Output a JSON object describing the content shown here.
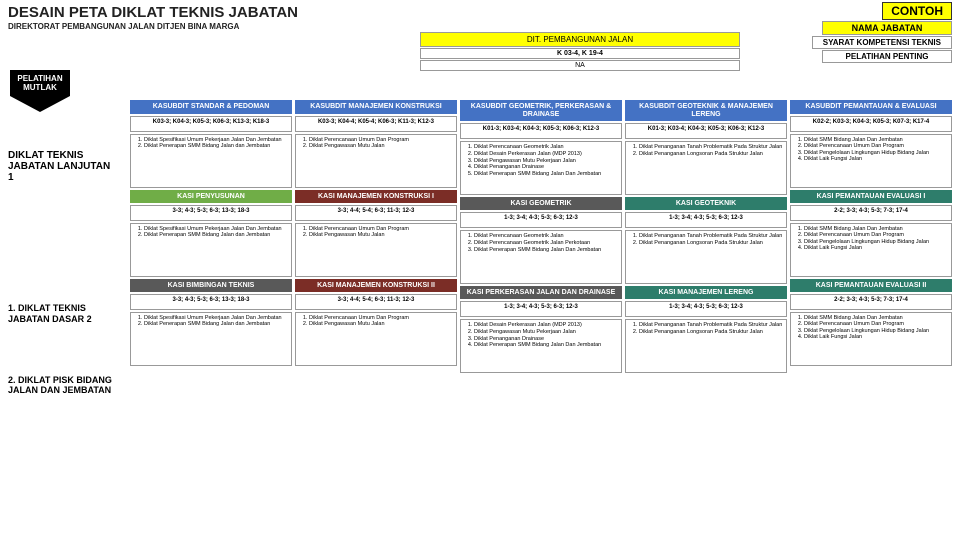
{
  "header": {
    "title": "DESAIN PETA DIKLAT TEKNIS JABATAN",
    "subtitle": "DIREKTORAT PEMBANGUNAN JALAN DITJEN BINA MARGA"
  },
  "topRight": {
    "contoh": "CONTOH",
    "nama": "NAMA JABATAN",
    "syarat": "SYARAT KOMPETENSI TEKNIS",
    "penting": "PELATIHAN PENTING"
  },
  "topMid": {
    "dit": "DIT. PEMBANGUNAN JALAN",
    "kode": "K 03-4, K 19-4",
    "na": "NA"
  },
  "mutlak": "PELATIHAN MUTLAK",
  "left": {
    "title": "DIKLAT TEKNIS JABATAN LANJUTAN 1",
    "i1": "1. DIKLAT TEKNIS JABATAN DASAR 2",
    "i2": "2. DIKLAT PISK BIDANG JALAN DAN JEMBATAN"
  },
  "colors": {
    "blue": "#4472C4",
    "green": "#70AD47",
    "dgray": "#595959",
    "maroon": "#7B2D26",
    "teal": "#2E7D6B",
    "yellow": "#FFFF00"
  },
  "cols": [
    {
      "hdr": "KASUBDIT STANDAR & PEDOMAN",
      "hdrCls": "c-blue",
      "codes": "K03-3; K04-3; K05-3; K06-3; K13-3; K18-3",
      "items": [
        "Diklat Spesifikasi Umum Pekerjaan Jalan Dan Jembatan",
        "Diklat Penerapan SMM Bidang Jalan dan Jembatan"
      ],
      "sub": [
        {
          "t": "KASI PENYUSUNAN",
          "cls": "c-green",
          "c": "3-3; 4-3; 5-3; 6-3; 13-3; 18-3",
          "it": [
            "Diklat Spesifikasi Umum Pekerjaan Jalan Dan Jembatan",
            "Diklat Penerapan SMM Bidang Jalan dan Jembatan"
          ]
        },
        {
          "t": "KASI BIMBINGAN TEKNIS",
          "cls": "c-dgray",
          "c": "3-3; 4-3; 5-3; 6-3; 13-3; 18-3",
          "it": [
            "Diklat Spesifikasi Umum Pekerjaan Jalan Dan Jembatan",
            "Diklat Penerapan SMM Bidang Jalan dan Jembatan"
          ]
        }
      ]
    },
    {
      "hdr": "KASUBDIT MANAJEMEN KONSTRUKSI",
      "hdrCls": "c-blue",
      "codes": "K03-3; K04-4; K05-4; K06-3; K11-3; K12-3",
      "items": [
        "Diklat Perencanaan Umum Dan Program",
        "Diklat Pengawasan Mutu Jalan"
      ],
      "sub": [
        {
          "t": "KASI MANAJEMEN KONSTRUKSI I",
          "cls": "c-maroon",
          "c": "3-3; 4-4; 5-4; 6-3; 11-3; 12-3",
          "it": [
            "Diklat Perencanaan Umum Dan Program",
            "Diklat Pengawasan Mutu Jalan"
          ]
        },
        {
          "t": "KASI MANAJEMEN KONSTRUKSI II",
          "cls": "c-maroon",
          "c": "3-3; 4-4; 5-4; 6-3; 11-3; 12-3",
          "it": [
            "Diklat Perencanaan Umum Dan Program",
            "Diklat Pengawasan Mutu Jalan"
          ]
        }
      ]
    },
    {
      "hdr": "KASUBDIT GEOMETRIK, PERKERASAN & DRAINASE",
      "hdrCls": "c-blue",
      "codes": "K01-3; K03-4; K04-3; K05-3; K06-3; K12-3",
      "items": [
        "Diklat Perencanaan Geometrik Jalan",
        "Diklat Desain Perkerasan Jalan (MDP 2013)",
        "Diklat Pengawasan Mutu Pekerjaan Jalan",
        "Diklat Penanganan Drainase",
        "Diklat Penerapan SMM Bidang Jalan Dan Jembatan"
      ],
      "sub": [
        {
          "t": "KASI GEOMETRIK",
          "cls": "c-dgray",
          "c": "1-3; 3-4; 4-3; 5-3; 6-3; 12-3",
          "it": [
            "Diklat Perencanaan Geometrik Jalan",
            "Diklat Perencanaan Geometrik Jalan Perkotaan",
            "Diklat Penerapan SMM Bidang Jalan Dan Jembatan"
          ]
        },
        {
          "t": "KASI PERKERASAN JALAN DAN DRAINASE",
          "cls": "c-dgray",
          "c": "1-3; 3-4; 4-3; 5-3; 6-3; 12-3",
          "it": [
            "Diklat Desain Perkerasan Jalan (MDP 2013)",
            "Diklat Pengawasan Mutu Pekerjaan Jalan",
            "Diklat Penanganan Drainase",
            "Diklat Penerapan SMM Bidang Jalan Dan Jembatan"
          ]
        }
      ]
    },
    {
      "hdr": "KASUBDIT GEOTEKNIK & MANAJEMEN LERENG",
      "hdrCls": "c-blue",
      "codes": "K01-3; K03-4; K04-3; K05-3; K06-3; K12-3",
      "items": [
        "Diklat Penanganan Tanah Problematik Pada Struktur Jalan",
        "Diklat Penanganan Longsoran Pada Struktur Jalan"
      ],
      "sub": [
        {
          "t": "KASI GEOTEKNIK",
          "cls": "c-teal",
          "c": "1-3; 3-4; 4-3; 5-3; 6-3; 12-3",
          "it": [
            "Diklat Penanganan Tanah Problematik Pada Struktur Jalan",
            "Diklat Penanganan Longsoran Pada Struktur Jalan"
          ]
        },
        {
          "t": "KASI MANAJEMEN LERENG",
          "cls": "c-teal",
          "c": "1-3; 3-4; 4-3; 5-3; 6-3; 12-3",
          "it": [
            "Diklat Penanganan Tanah Problematik Pada Struktur Jalan",
            "Diklat Penanganan Longsoran Pada Struktur Jalan"
          ]
        }
      ]
    },
    {
      "hdr": "KASUBDIT PEMANTAUAN & EVALUASI",
      "hdrCls": "c-blue",
      "codes": "K02-2; K03-3; K04-3; K05-3; K07-3; K17-4",
      "items": [
        "Diklat SMM Bidang Jalan Dan Jembatan",
        "Diklat Perencanaan Umum Dan Program",
        "Diklat Pengelolaan Lingkungan Hidup Bidang Jalan",
        "Diklat Laik Fungsi Jalan"
      ],
      "sub": [
        {
          "t": "KASI PEMANTAUAN EVALUASI I",
          "cls": "c-teal",
          "c": "2-2; 3-3; 4-3; 5-3; 7-3; 17-4",
          "it": [
            "Diklat SMM Bidang Jalan Dan Jembatan",
            "Diklat Perencanaan Umum Dan Program",
            "Diklat Pengelolaan Lingkungan Hidup Bidang Jalan",
            "Diklat Laik Fungsi Jalan"
          ]
        },
        {
          "t": "KASI PEMANTAUAN EVALUASI II",
          "cls": "c-teal",
          "c": "2-2; 3-3; 4-3; 5-3; 7-3; 17-4",
          "it": [
            "Diklat SMM Bidang Jalan Dan Jembatan",
            "Diklat Perencanaan Umum Dan Program",
            "Diklat Pengelolaan Lingkungan Hidup Bidang Jalan",
            "Diklat Laik Fungsi Jalan"
          ]
        }
      ]
    }
  ]
}
